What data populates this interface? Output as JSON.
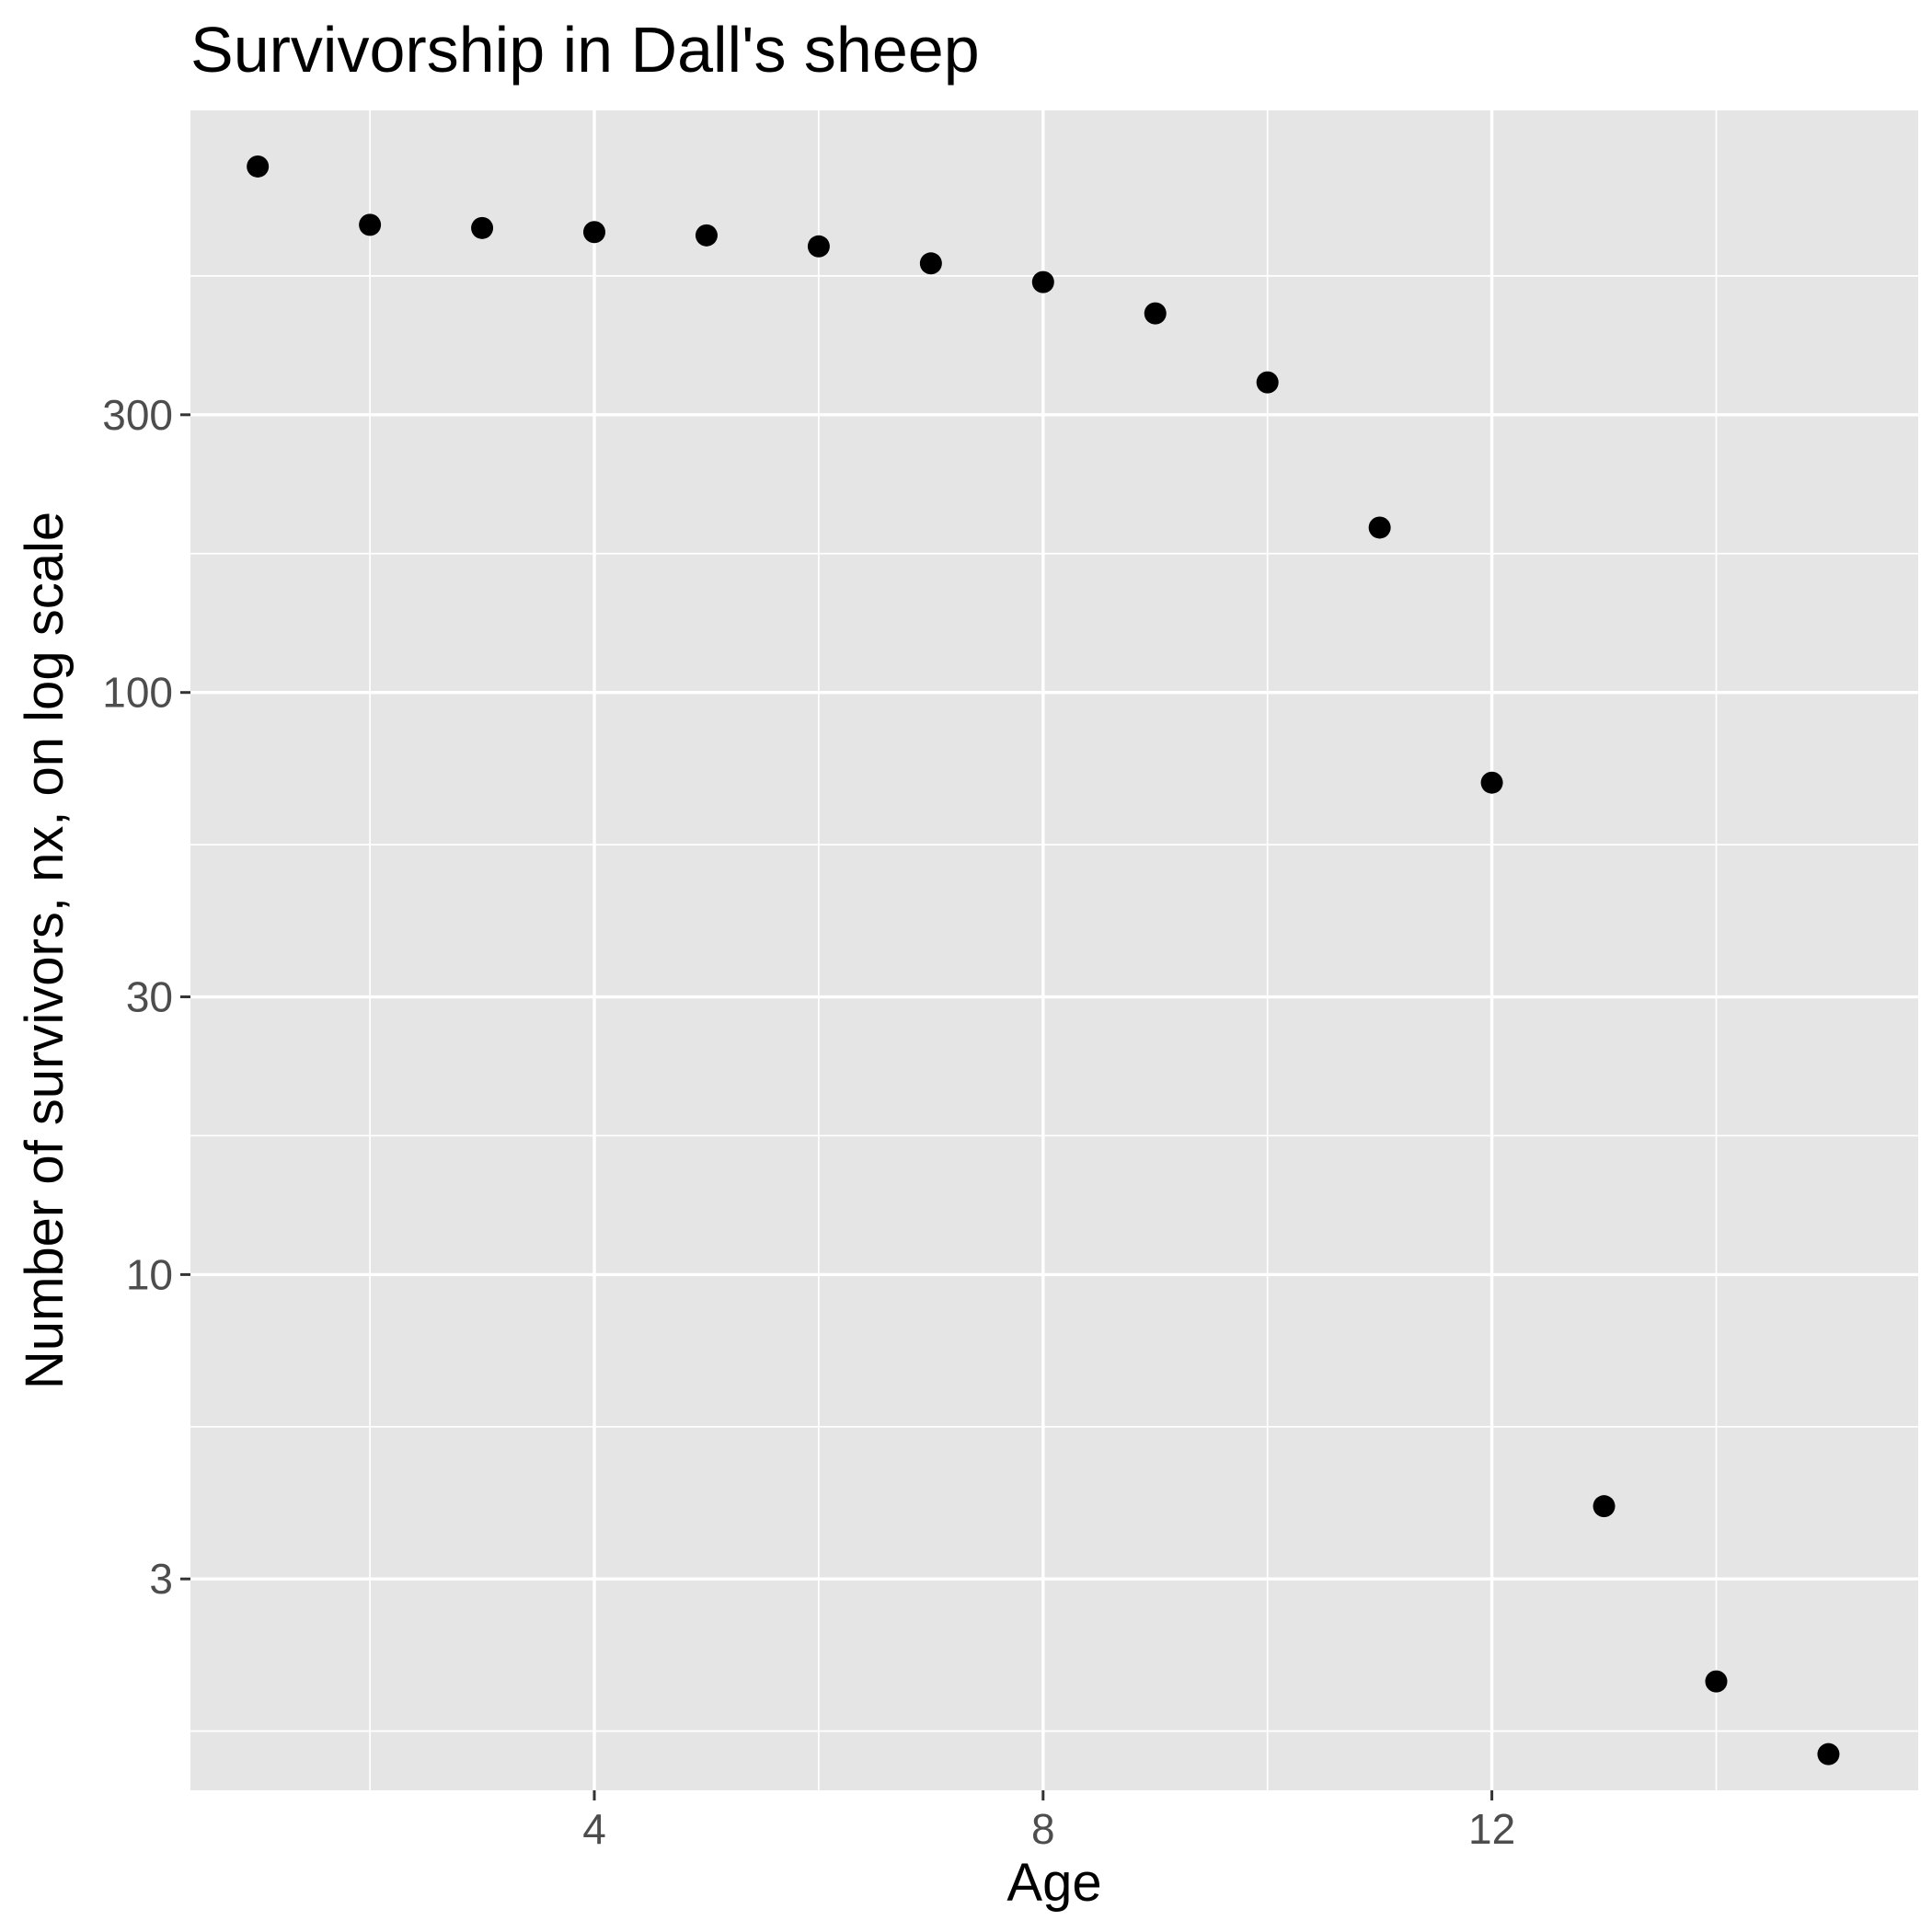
{
  "chart_data": {
    "type": "scatter",
    "title": "Survivorship in Dall's sheep",
    "xlabel": "Age",
    "ylabel": "Number of survivors, nx, on log scale",
    "x_scale": "linear",
    "y_scale": "log10",
    "xlim": [
      0.4,
      15.8
    ],
    "ylim": [
      1.3,
      1000
    ],
    "x_ticks": [
      4,
      8,
      12
    ],
    "x_tick_labels": [
      "4",
      "8",
      "12"
    ],
    "y_ticks": [
      3,
      10,
      30,
      100,
      300
    ],
    "y_tick_labels": [
      "3",
      "10",
      "30",
      "100",
      "300"
    ],
    "grid": true,
    "legend": "none",
    "point_color": "#000000",
    "panel_color": "#e5e5e5",
    "series": [
      {
        "x": [
          1,
          2,
          3,
          4,
          5,
          6,
          7,
          8,
          9,
          10,
          11,
          12,
          13,
          14,
          15
        ],
        "y": [
          801,
          636,
          628,
          618,
          610,
          584,
          546,
          507,
          448,
          341,
          192,
          70,
          4,
          2,
          1.5
        ]
      }
    ]
  }
}
